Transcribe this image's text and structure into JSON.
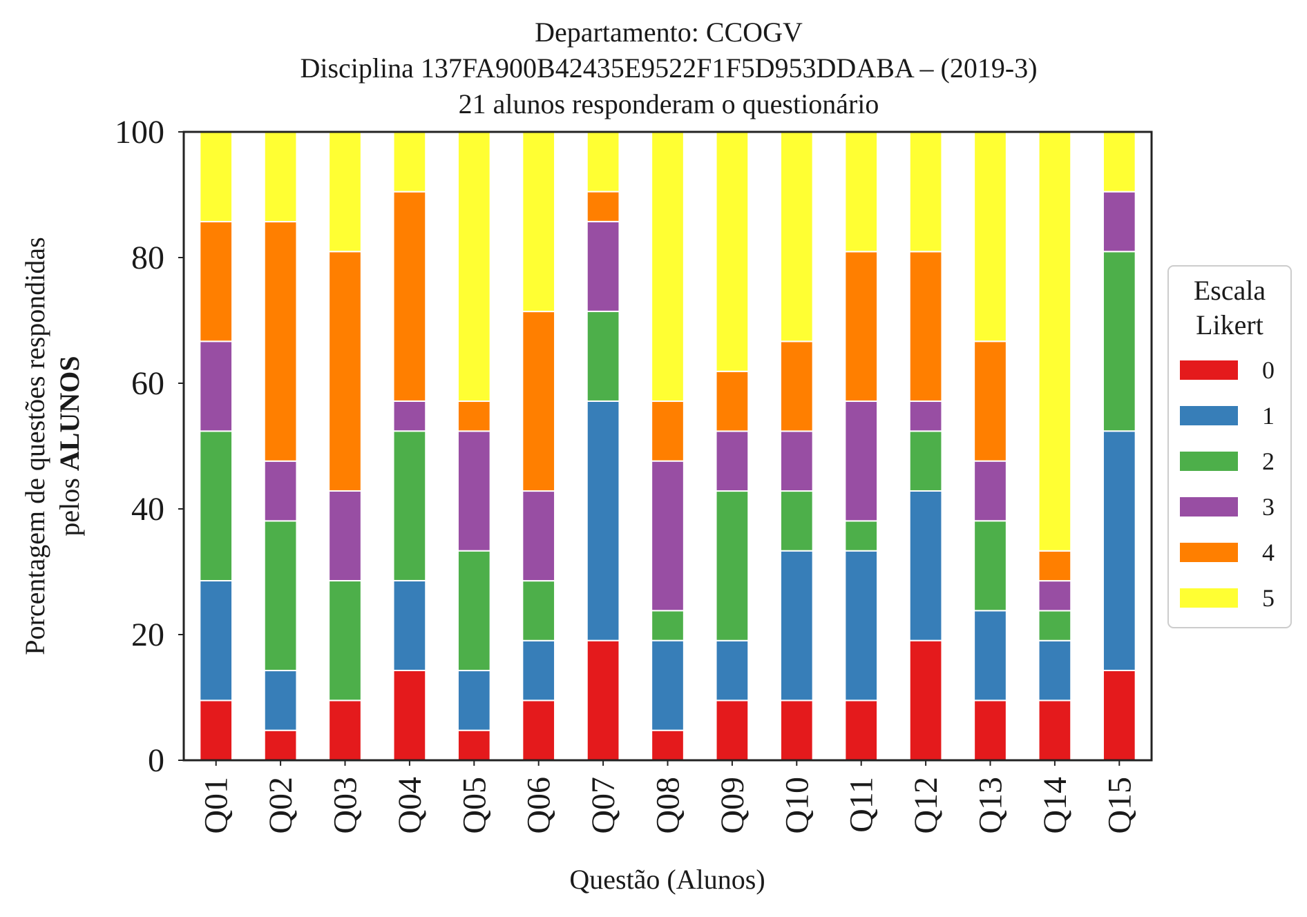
{
  "chart_data": {
    "type": "bar",
    "stacked": true,
    "title_lines": [
      "Departamento: CCOGV",
      "Disciplina 137FA900B42435E9522F1F5D953DDABA – (2019-3)",
      "21 alunos responderam o questionário"
    ],
    "xlabel": "Questão (Alunos)",
    "ylabel_line1": "Porcentagem de questões respondidas",
    "ylabel_line2_prefix": "pelos ",
    "ylabel_line2_bold": "ALUNOS",
    "ylim": [
      0,
      100
    ],
    "yticks": [
      "0",
      "20",
      "40",
      "60",
      "80",
      "100"
    ],
    "grid": false,
    "legend": {
      "title_lines": [
        "Escala",
        "Likert"
      ],
      "placement": "right-center"
    },
    "categories": [
      "Q01",
      "Q02",
      "Q03",
      "Q04",
      "Q05",
      "Q06",
      "Q07",
      "Q08",
      "Q09",
      "Q10",
      "Q11",
      "Q12",
      "Q13",
      "Q14",
      "Q15"
    ],
    "series": [
      {
        "name": "0",
        "color": "#e41a1c",
        "values": [
          9.52,
          4.76,
          9.52,
          14.29,
          4.76,
          9.52,
          19.05,
          4.76,
          9.52,
          9.52,
          9.52,
          19.05,
          9.52,
          9.52,
          14.29
        ]
      },
      {
        "name": "1",
        "color": "#377eb8",
        "values": [
          19.05,
          9.52,
          0,
          14.29,
          9.52,
          9.52,
          38.1,
          14.29,
          9.52,
          23.81,
          23.81,
          23.81,
          14.29,
          9.52,
          38.1
        ]
      },
      {
        "name": "2",
        "color": "#4daf4a",
        "values": [
          23.81,
          23.81,
          19.05,
          23.81,
          19.05,
          9.52,
          14.29,
          4.76,
          23.81,
          9.52,
          4.76,
          9.52,
          14.29,
          4.76,
          28.57
        ]
      },
      {
        "name": "3",
        "color": "#984ea3",
        "values": [
          14.29,
          9.52,
          14.29,
          4.76,
          19.05,
          14.29,
          14.29,
          23.81,
          9.52,
          9.52,
          19.05,
          4.76,
          9.52,
          4.76,
          9.52
        ]
      },
      {
        "name": "4",
        "color": "#ff7f00",
        "values": [
          19.05,
          38.1,
          38.1,
          33.33,
          4.76,
          28.57,
          4.76,
          9.52,
          9.52,
          14.29,
          23.81,
          23.81,
          19.05,
          4.76,
          0
        ]
      },
      {
        "name": "5",
        "color": "#ffff33",
        "values": [
          14.29,
          14.29,
          19.05,
          9.52,
          42.86,
          28.57,
          9.52,
          42.86,
          38.1,
          33.33,
          19.05,
          19.05,
          33.33,
          66.67,
          9.52
        ]
      }
    ]
  }
}
